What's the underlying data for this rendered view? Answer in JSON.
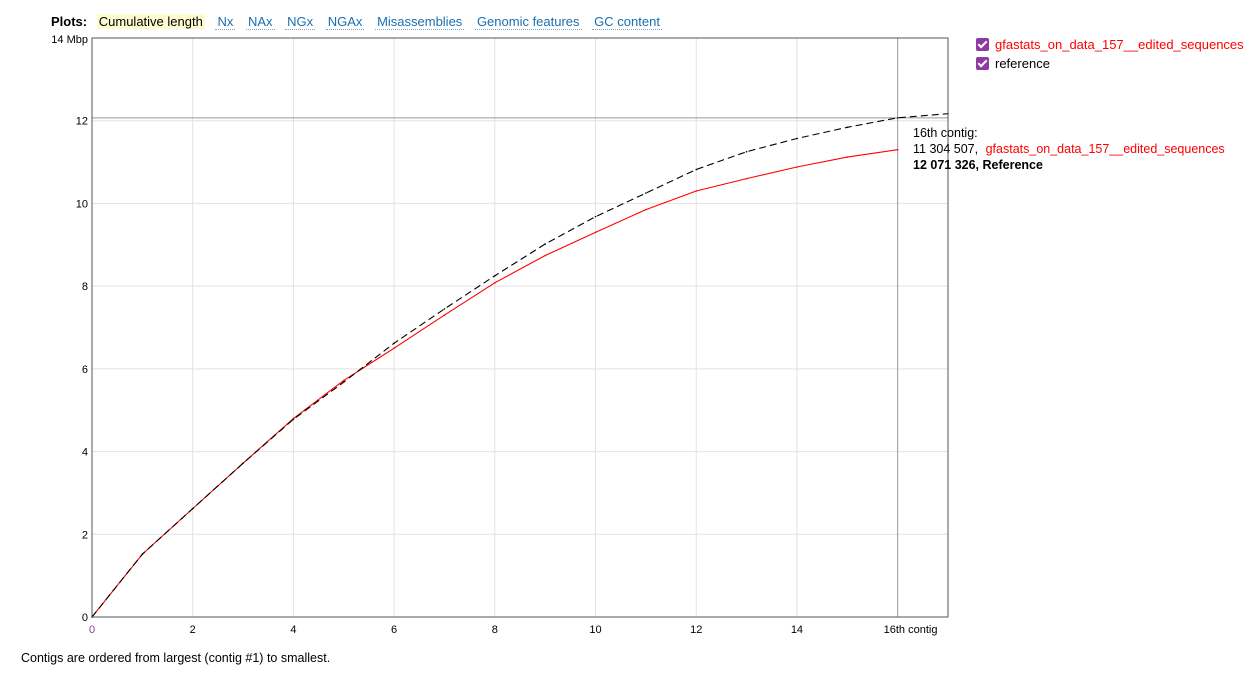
{
  "plots_label": "Plots:",
  "tabs": [
    {
      "label": "Cumulative length",
      "selected": true
    },
    {
      "label": "Nx",
      "selected": false
    },
    {
      "label": "NAx",
      "selected": false
    },
    {
      "label": "NGx",
      "selected": false
    },
    {
      "label": "NGAx",
      "selected": false
    },
    {
      "label": "Misassemblies",
      "selected": false
    },
    {
      "label": "Genomic features",
      "selected": false
    },
    {
      "label": "GC content",
      "selected": false
    }
  ],
  "legend": [
    {
      "label": "gfastats_on_data_157__edited_sequences",
      "color": "#ff0000",
      "checked": true
    },
    {
      "label": "reference",
      "color": "#000000",
      "checked": true
    }
  ],
  "tooltip": {
    "title": "16th contig:",
    "line1_value": "11 304 507,",
    "line1_name": "gfastats_on_data_157__edited_sequences",
    "line2": "12 071 326, Reference"
  },
  "footnote": "Contigs are ordered from largest (contig #1) to smallest.",
  "chart_data": {
    "type": "line",
    "xlim": [
      0,
      17
    ],
    "ylim": [
      0,
      14
    ],
    "x_ticks": [
      {
        "value": 0,
        "label": "0"
      },
      {
        "value": 2,
        "label": "2"
      },
      {
        "value": 4,
        "label": "4"
      },
      {
        "value": 6,
        "label": "6"
      },
      {
        "value": 8,
        "label": "8"
      },
      {
        "value": 10,
        "label": "10"
      },
      {
        "value": 12,
        "label": "12"
      },
      {
        "value": 14,
        "label": "14"
      },
      {
        "value": 16,
        "label": "16th contig"
      }
    ],
    "y_ticks": [
      {
        "value": 0,
        "label": "0"
      },
      {
        "value": 2,
        "label": "2"
      },
      {
        "value": 4,
        "label": "4"
      },
      {
        "value": 6,
        "label": "6"
      },
      {
        "value": 8,
        "label": "8"
      },
      {
        "value": 10,
        "label": "10"
      },
      {
        "value": 12,
        "label": "12"
      },
      {
        "value": 14,
        "label": "14 Mbp"
      }
    ],
    "grid": true,
    "highlight_x": 16,
    "reference_level": 12.07,
    "series": [
      {
        "name": "gfastats_on_data_157__edited_sequences",
        "color": "#ff0000",
        "dash": false,
        "x": [
          0,
          1,
          2,
          3,
          4,
          5,
          6,
          7,
          8,
          9,
          10,
          11,
          12,
          13,
          14,
          15,
          16
        ],
        "y": [
          0,
          1.52,
          2.62,
          3.72,
          4.8,
          5.72,
          6.5,
          7.3,
          8.08,
          8.74,
          9.3,
          9.85,
          10.3,
          10.6,
          10.88,
          11.12,
          11.3
        ]
      },
      {
        "name": "reference",
        "color": "#000000",
        "dash": true,
        "x": [
          0,
          1,
          2,
          3,
          4,
          5,
          6,
          7,
          8,
          9,
          10,
          11,
          12,
          13,
          14,
          15,
          16,
          17
        ],
        "y": [
          0,
          1.52,
          2.62,
          3.72,
          4.78,
          5.68,
          6.62,
          7.45,
          8.25,
          9.02,
          9.68,
          10.25,
          10.82,
          11.25,
          11.57,
          11.84,
          12.07,
          12.17
        ]
      }
    ]
  }
}
